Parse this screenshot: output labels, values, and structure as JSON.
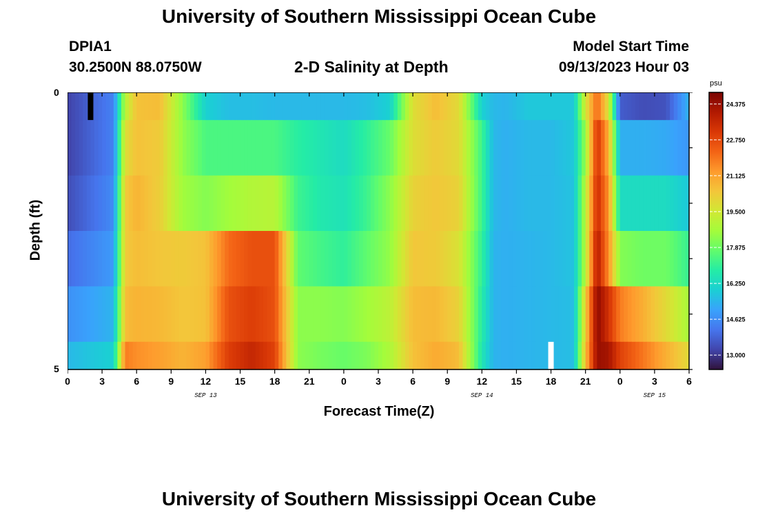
{
  "page": {
    "title": "University of Southern Mississippi Ocean Cube",
    "station_id": "DPIA1",
    "coords": "30.2500N  88.0750W",
    "plot_title": "2-D Salinity at Depth",
    "start_label": "Model Start Time",
    "start_value": "09/13/2023 Hour 03",
    "bottom_title": "University of Southern Mississippi Ocean Cube"
  },
  "colors": {
    "background": "#ffffff",
    "text": "#000000",
    "marker_black": "#000000",
    "marker_white": "#ffffff"
  },
  "chart_data": {
    "type": "heatmap",
    "xlabel": "Forecast Time(Z)",
    "ylabel": "Depth (ft)",
    "x_range_hours": [
      0,
      54
    ],
    "y_range_ft": [
      0,
      5
    ],
    "y_ticks": [
      "0",
      "5"
    ],
    "x_tick_labels": [
      "0",
      "3",
      "6",
      "9",
      "12",
      "15",
      "18",
      "21",
      "0",
      "3",
      "6",
      "9",
      "12",
      "15",
      "18",
      "21",
      "0",
      "3",
      "6"
    ],
    "dates": [
      {
        "label": "SEP 13",
        "hour": 12
      },
      {
        "label": "SEP 14",
        "hour": 36
      },
      {
        "label": "SEP 15",
        "hour": 51
      }
    ],
    "colorbar": {
      "unit": "psu",
      "min": 12.35,
      "max": 24.9,
      "tick_labels": [
        "24.375",
        "22.750",
        "21.125",
        "19.500",
        "17.875",
        "16.250",
        "14.625",
        "13.000"
      ],
      "tick_values": [
        24.375,
        22.75,
        21.125,
        19.5,
        17.875,
        16.25,
        14.625,
        13.0
      ],
      "colormap": [
        "#30123b",
        "#4145ab",
        "#4675ed",
        "#39a2fc",
        "#1bcfd4",
        "#24eca6",
        "#61fc6c",
        "#a4fc3b",
        "#d1e834",
        "#f3c63a",
        "#fe9b2d",
        "#f36315",
        "#d93806",
        "#b11901",
        "#7a0402"
      ]
    },
    "depth_layers": [
      "0-0.5 ft",
      "0.5-1.5 ft",
      "1.5-2.5 ft",
      "2.5-3.5 ft",
      "3.5-4.5 ft",
      "4.5-5 ft"
    ],
    "time_hours": [
      0,
      4,
      5,
      6,
      8,
      10,
      12,
      14,
      16,
      18,
      20,
      22,
      24,
      26,
      28,
      30,
      32,
      34,
      36,
      37,
      38,
      40,
      42,
      44,
      45,
      46,
      47,
      48,
      50,
      52,
      54
    ],
    "salinity_psu": [
      [
        13.2,
        14.4,
        19.0,
        20.5,
        20.6,
        18.3,
        16.0,
        15.6,
        15.6,
        15.5,
        15.5,
        15.5,
        15.5,
        15.6,
        16.0,
        19.8,
        20.6,
        19.9,
        16.0,
        15.5,
        15.4,
        15.8,
        15.8,
        15.8,
        19.6,
        22.2,
        19.7,
        13.7,
        13.4,
        13.5,
        15.4
      ],
      [
        13.2,
        14.4,
        19.8,
        20.5,
        20.3,
        18.4,
        17.4,
        17.4,
        17.4,
        17.4,
        16.9,
        16.6,
        16.3,
        17.0,
        17.8,
        19.8,
        20.3,
        19.9,
        17.2,
        15.5,
        15.3,
        15.5,
        15.5,
        15.8,
        18.5,
        23.3,
        20.9,
        15.3,
        15.3,
        15.2,
        14.8
      ],
      [
        13.4,
        14.6,
        20.3,
        20.8,
        20.2,
        18.6,
        18.2,
        18.6,
        18.9,
        19.0,
        17.2,
        16.7,
        16.5,
        17.2,
        18.3,
        20.1,
        20.4,
        20.1,
        17.2,
        15.5,
        15.3,
        15.5,
        15.5,
        15.7,
        19.0,
        23.5,
        21.4,
        16.3,
        16.3,
        16.3,
        15.8
      ],
      [
        14.0,
        14.9,
        20.3,
        20.6,
        20.4,
        20.3,
        20.5,
        22.1,
        22.6,
        22.6,
        17.7,
        17.3,
        17.0,
        17.7,
        18.4,
        20.4,
        20.3,
        19.7,
        17.0,
        15.4,
        15.3,
        15.4,
        15.5,
        15.7,
        19.0,
        24.0,
        21.5,
        18.2,
        17.9,
        17.9,
        17.1
      ],
      [
        14.7,
        15.4,
        20.6,
        20.8,
        20.7,
        20.4,
        20.5,
        22.6,
        23.0,
        22.6,
        18.3,
        18.3,
        18.2,
        18.6,
        19.1,
        20.6,
        20.7,
        20.1,
        16.8,
        15.4,
        15.3,
        15.4,
        15.5,
        15.6,
        20.2,
        24.6,
        23.3,
        21.8,
        20.9,
        19.9,
        18.7
      ],
      [
        15.5,
        16.0,
        21.8,
        21.5,
        21.2,
        20.8,
        21.2,
        23.0,
        23.6,
        22.9,
        18.3,
        18.0,
        17.8,
        18.1,
        18.8,
        20.5,
        21.0,
        20.6,
        16.6,
        15.4,
        15.3,
        15.4,
        15.5,
        15.6,
        20.6,
        24.4,
        24.2,
        22.9,
        21.9,
        20.9,
        19.9
      ]
    ],
    "markers": [
      {
        "color": "marker_black",
        "hour": 2,
        "depth_ft": 0.25
      },
      {
        "color": "marker_white",
        "hour": 42,
        "depth_ft": 4.75
      }
    ]
  }
}
